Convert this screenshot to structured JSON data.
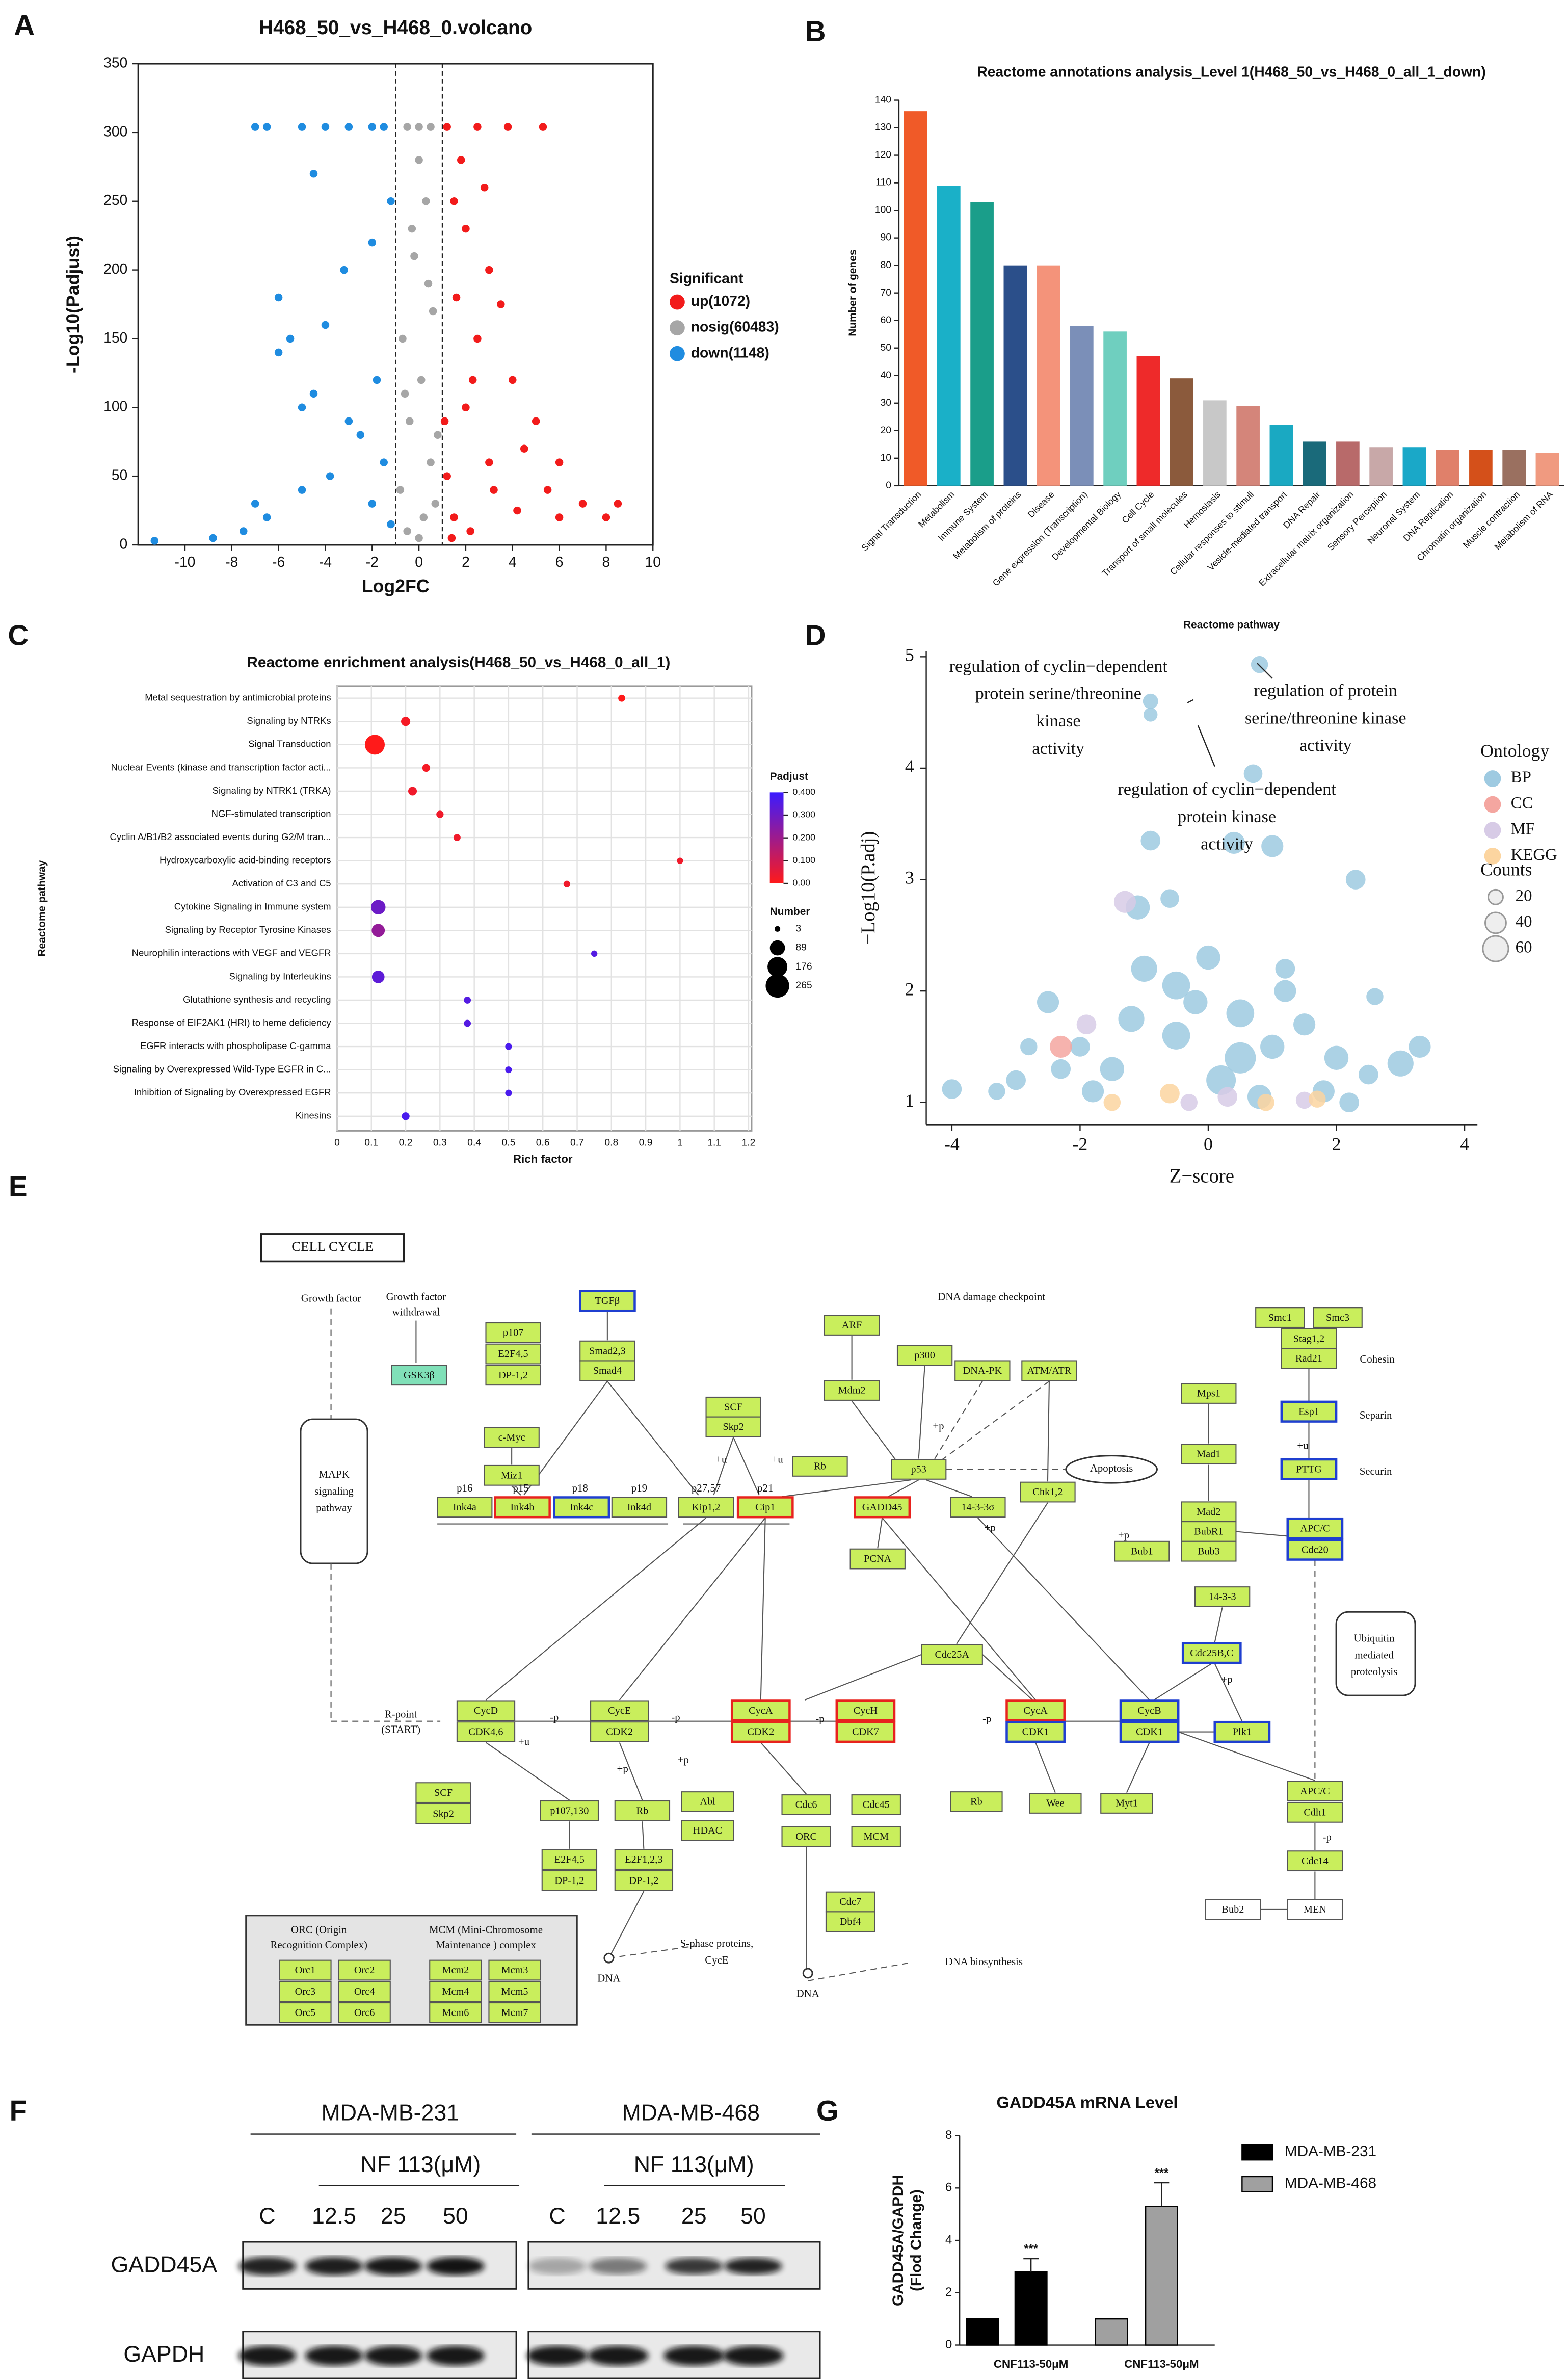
{
  "panel_labels": [
    "A",
    "B",
    "C",
    "D",
    "E",
    "F",
    "G"
  ],
  "chart_data": [
    {
      "type": "scatter",
      "title": "H468_50_vs_H468_0.volcano",
      "x_label": "Log2FC",
      "y_label": "-Log10(Padjust)",
      "xlim": [
        -12,
        10
      ],
      "xticks": [
        -10,
        -8,
        -6,
        -4,
        -2,
        0,
        2,
        4,
        6,
        8,
        10
      ],
      "ylim": [
        0,
        350
      ],
      "yticks": [
        0,
        50,
        100,
        150,
        200,
        250,
        300,
        350
      ],
      "thresholds": [
        -1,
        1
      ],
      "legend_title": "Significant",
      "legend": "right",
      "series": [
        {
          "name": "up(1072)",
          "color": "#f21b1b",
          "x": [
            1.5,
            2,
            3,
            2.5,
            4,
            5,
            6,
            7,
            8.5,
            8,
            6,
            5.5,
            3,
            2,
            1.2,
            1.5,
            2.2,
            4.5,
            3.5,
            1.8,
            2.8,
            5.3,
            3.8,
            1.2,
            2.5,
            1.6,
            2.3,
            1.1,
            3.2,
            4.2,
            1.4
          ],
          "y": [
            250,
            230,
            200,
            150,
            120,
            90,
            60,
            30,
            30,
            20,
            20,
            40,
            60,
            100,
            50,
            20,
            10,
            70,
            175,
            280,
            260,
            304,
            304,
            304,
            304,
            180,
            120,
            90,
            40,
            25,
            5
          ]
        },
        {
          "name": "nosig(60483)",
          "color": "#a6a6a6",
          "x": [
            0,
            -0.5,
            0.5,
            0,
            0.3,
            -0.2,
            0.6,
            -0.7,
            0.1,
            -0.4,
            0.5,
            -0.8,
            0.2,
            0,
            -0.5,
            0.8,
            -0.3,
            0.4,
            -0.6,
            0.7
          ],
          "y": [
            304,
            304,
            304,
            280,
            250,
            210,
            170,
            150,
            120,
            90,
            60,
            40,
            20,
            5,
            10,
            80,
            230,
            190,
            110,
            30
          ]
        },
        {
          "name": "down(1148)",
          "color": "#1f8ce0",
          "x": [
            -1.5,
            -3,
            -5,
            -7,
            -2,
            -4,
            -6.5,
            -1.2,
            -2,
            -3.2,
            -4,
            -5.5,
            -6,
            -4.5,
            -3,
            -2.5,
            -1.5,
            -6.5,
            -7,
            -7.5,
            -11.3,
            -5,
            -2,
            -1.2,
            -3.8,
            -4.5,
            -8.8,
            -6,
            -5,
            -1.8
          ],
          "y": [
            304,
            304,
            304,
            304,
            304,
            304,
            304,
            250,
            220,
            200,
            160,
            150,
            140,
            110,
            90,
            80,
            60,
            20,
            30,
            10,
            3,
            40,
            30,
            15,
            50,
            270,
            5,
            180,
            100,
            120
          ]
        }
      ]
    },
    {
      "type": "bar",
      "title": "Reactome annotations analysis_Level 1(H468_50_vs_H468_0_all_1_down)",
      "x_label": "Reactome pathway",
      "y_label": "Number of genes",
      "ylim": [
        0,
        140
      ],
      "yticks": [
        0,
        10,
        20,
        30,
        40,
        50,
        60,
        70,
        80,
        90,
        100,
        110,
        120,
        130,
        140
      ],
      "categories": [
        "Signal Transduction",
        "Metabolism",
        "Immune System",
        "Metabolism of proteins",
        "Disease",
        "Gene expression (Transcription)",
        "Developmental Biology",
        "Cell Cycle",
        "Transport of small molecules",
        "Hemostasis",
        "Cellular responses to stimuli",
        "Vesicle-mediated transport",
        "DNA Repair",
        "Extracellular matrix organization",
        "Sensory Perception",
        "Neuronal System",
        "DNA Replication",
        "Chromatin organization",
        "Muscle contraction",
        "Metabolism of RNA"
      ],
      "values": [
        136,
        109,
        103,
        80,
        80,
        58,
        56,
        47,
        39,
        31,
        29,
        22,
        16,
        16,
        14,
        14,
        13,
        13,
        13,
        12
      ],
      "colors": [
        "#f05a28",
        "#1ab0c8",
        "#1a9e8a",
        "#2b4f8a",
        "#f4937a",
        "#7b8fb8",
        "#6fcfbf",
        "#ee2a2a",
        "#8b5a3c",
        "#c8c8c8",
        "#d4857a",
        "#1aa9c2",
        "#1a6a7a",
        "#b86a6a",
        "#c8a8a8",
        "#1aa8c8",
        "#e0806a",
        "#d4501a",
        "#9a7060",
        "#f09a80"
      ]
    },
    {
      "type": "dot",
      "title": "Reactome enrichment analysis(H468_50_vs_H468_0_all_1)",
      "x_label": "Rich factor",
      "y_label": "Reactome pathway",
      "xlim": [
        0,
        1.2
      ],
      "xticks": [
        0,
        0.1,
        0.2,
        0.3,
        0.4,
        0.5,
        0.6,
        0.7,
        0.8,
        0.9,
        1,
        1.1,
        1.2
      ],
      "grid": true,
      "categories": [
        "Metal sequestration by antimicrobial proteins",
        "Signaling by NTRKs",
        "Signal Transduction",
        "Nuclear Events (kinase and transcription factor acti...",
        "Signaling by NTRK1 (TRKA)",
        "NGF-stimulated transcription",
        "Cyclin A/B1/B2 associated events during G2/M tran...",
        "Hydroxycarboxylic acid-binding receptors",
        "Activation of C3 and C5",
        "Cytokine Signaling in Immune system",
        "Signaling by Receptor Tyrosine Kinases",
        "Neurophilin interactions with VEGF and VEGFR",
        "Signaling by Interleukins",
        "Glutathione synthesis and recycling",
        "Response of EIF2AK1 (HRI) to heme deficiency",
        "EGFR interacts with phospholipase C-gamma",
        "Signaling by Overexpressed Wild-Type EGFR in C...",
        "Inhibition of Signaling by Overexpressed EGFR",
        "Kinesins"
      ],
      "values": [
        0.83,
        0.2,
        0.11,
        0.26,
        0.22,
        0.3,
        0.35,
        1,
        0.67,
        0.12,
        0.12,
        0.75,
        0.12,
        0.38,
        0.38,
        0.5,
        0.5,
        0.5,
        0.2
      ],
      "padjust": [
        0,
        0.02,
        0,
        0.02,
        0.03,
        0.03,
        0.03,
        0.03,
        0.03,
        0.3,
        0.22,
        0.35,
        0.33,
        0.35,
        0.35,
        0.37,
        0.37,
        0.37,
        0.37
      ],
      "number": [
        5,
        15,
        136,
        8,
        12,
        6,
        5,
        3,
        4,
        60,
        45,
        3,
        40,
        5,
        5,
        4,
        4,
        4,
        8
      ],
      "color_title": "Padjust",
      "colorbar_lim": [
        0,
        0.4
      ],
      "colorscale": [
        "#ff1a1a",
        "#3b1bff"
      ],
      "colorbar_ticks": [
        {
          "value": 0.4,
          "label": "0.400"
        },
        {
          "value": 0.3,
          "label": "0.300"
        },
        {
          "value": 0.2,
          "label": "0.200"
        },
        {
          "value": 0.1,
          "label": "0.100"
        },
        {
          "value": 0,
          "label": "0.00"
        }
      ],
      "size_title": "Number",
      "size_legend": [
        3,
        89,
        176,
        265
      ]
    },
    {
      "type": "bubble",
      "x_label": "Z−score",
      "y_label": "−Log10(P.adj)",
      "xlim": [
        -4.4,
        4.2
      ],
      "xticks": [
        -4,
        -2,
        0,
        2,
        4
      ],
      "ylim": [
        0.8,
        5.05
      ],
      "yticks": [
        1,
        2,
        3,
        4,
        5
      ],
      "legend_title": "Ontology",
      "size_title": "Counts",
      "size_legend": [
        20,
        40,
        60
      ],
      "annotations": [
        [
          "regulation of cyclin−dependent",
          "protein serine/threonine",
          "kinase",
          "activity"
        ],
        [
          "regulation of protein",
          "serine/threonine kinase",
          "activity"
        ],
        [
          "regulation of cyclin−dependent",
          "protein kinase",
          "activity"
        ]
      ],
      "series": [
        {
          "name": "BP",
          "color": "#9ecae1",
          "x": [
            0.8,
            -0.9,
            -0.9,
            0.7,
            -0.9,
            0.4,
            1,
            2.3,
            -0.6,
            -1.1,
            -2.5,
            -2,
            -1,
            0,
            0.5,
            1,
            1.5,
            2,
            3,
            3.3,
            -3,
            -4,
            -1.5,
            -0.5,
            0.2,
            0.8,
            1.8,
            2.5,
            -2.8,
            -1.8,
            -0.2,
            1.2,
            2.6,
            -1.2,
            0.5,
            -3.3,
            2.2,
            1.2,
            -0.5,
            -2.3
          ],
          "y": [
            4.93,
            4.6,
            4.48,
            3.95,
            3.35,
            3.33,
            3.3,
            3,
            2.83,
            2.75,
            1.9,
            1.5,
            2.2,
            2.3,
            1.8,
            1.5,
            1.7,
            1.4,
            1.35,
            1.5,
            1.2,
            1.12,
            1.3,
            1.6,
            1.2,
            1.05,
            1.1,
            1.25,
            1.5,
            1.1,
            1.9,
            2,
            1.95,
            1.75,
            1.4,
            1.1,
            1,
            2.2,
            2.05,
            1.3
          ],
          "size": [
            15,
            12,
            10,
            18,
            20,
            25,
            25,
            20,
            18,
            30,
            25,
            20,
            35,
            30,
            40,
            30,
            25,
            30,
            35,
            25,
            20,
            20,
            30,
            40,
            45,
            30,
            25,
            20,
            15,
            25,
            30,
            25,
            15,
            35,
            50,
            15,
            20,
            20,
            40,
            20
          ]
        },
        {
          "name": "CC",
          "color": "#f4a6a0",
          "x": [
            -2.3
          ],
          "y": [
            1.5
          ],
          "size": [
            25
          ]
        },
        {
          "name": "MF",
          "color": "#d7cbe6",
          "x": [
            -1.3,
            -1.9,
            0.3,
            -0.3,
            1.5
          ],
          "y": [
            2.8,
            1.7,
            1.05,
            1,
            1.02
          ],
          "size": [
            25,
            20,
            20,
            15,
            15
          ]
        },
        {
          "name": "KEGG",
          "color": "#fcd5a0",
          "x": [
            -1.5,
            -0.6,
            1.7,
            0.9
          ],
          "y": [
            1,
            1.08,
            1.03,
            1
          ],
          "size": [
            15,
            20,
            15,
            15
          ]
        }
      ]
    },
    {
      "type": "bar",
      "title": "GADD45A mRNA Level",
      "y_label": [
        "GADD45A/GAPDH",
        "(Flod Change)"
      ],
      "ylim": [
        0,
        8
      ],
      "yticks": [
        0,
        2,
        4,
        6,
        8
      ],
      "categories": [
        null,
        "CNF113-50μM",
        null,
        "CNF113-50μM"
      ],
      "series": [
        {
          "name": "MDA-MB-231",
          "color": "#000000",
          "values": [
            1,
            2.8,
            null,
            null
          ],
          "errors": [
            null,
            0.5,
            null,
            null
          ]
        },
        {
          "name": "MDA-MB-468",
          "color": "#a0a0a0",
          "values": [
            null,
            null,
            1,
            5.3
          ],
          "errors": [
            null,
            null,
            null,
            0.9
          ]
        }
      ],
      "significance": [
        null,
        "***",
        null,
        "***"
      ]
    }
  ],
  "pathway": {
    "title": "CELL CYCLE",
    "nodes": [
      {
        "label": "GSK3β",
        "fill": "#80e0b8"
      },
      {
        "label": "TGFβ",
        "border": "blue"
      },
      {
        "label": "p107"
      },
      {
        "label": "E2F4,5"
      },
      {
        "label": "DP-1,2"
      },
      {
        "label": "Smad2,3"
      },
      {
        "label": "Smad4"
      },
      {
        "label": "c-Myc"
      },
      {
        "label": "Miz1"
      },
      {
        "label": "SCF"
      },
      {
        "label": "Skp2"
      },
      {
        "label": "ARF"
      },
      {
        "label": "Mdm2"
      },
      {
        "label": "Rb"
      },
      {
        "label": "p300"
      },
      {
        "label": "DNA-PK"
      },
      {
        "label": "ATM/ATR"
      },
      {
        "label": "p53"
      },
      {
        "label": "Ink4a"
      },
      {
        "label": "Ink4b",
        "border": "red"
      },
      {
        "label": "Ink4c",
        "border": "blue"
      },
      {
        "label": "Ink4d"
      },
      {
        "label": "Kip1,2"
      },
      {
        "label": "Cip1",
        "border": "red"
      },
      {
        "label": "GADD45",
        "border": "red"
      },
      {
        "label": "14-3-3σ"
      },
      {
        "label": "Chk1,2"
      },
      {
        "label": "PCNA"
      },
      {
        "label": "Smc1"
      },
      {
        "label": "Smc3"
      },
      {
        "label": "Stag1,2"
      },
      {
        "label": "Rad21"
      },
      {
        "label": "Esp1",
        "border": "blue"
      },
      {
        "label": "PTTG",
        "border": "blue"
      },
      {
        "label": "Mps1"
      },
      {
        "label": "Mad1"
      },
      {
        "label": "Mad2"
      },
      {
        "label": "BubR1"
      },
      {
        "label": "Bub3"
      },
      {
        "label": "Bub1"
      },
      {
        "label": "APC/C",
        "border": "blue"
      },
      {
        "label": "Cdc20",
        "border": "blue"
      },
      {
        "label": "14-3-3"
      },
      {
        "label": "Cdc25B,C",
        "border": "blue"
      },
      {
        "label": "Cdc25A"
      },
      {
        "label": "CycD"
      },
      {
        "label": "CDK4,6"
      },
      {
        "label": "CycE"
      },
      {
        "label": "CDK2"
      },
      {
        "label": "CycA",
        "border": "red"
      },
      {
        "label": "CDK2",
        "border": "red"
      },
      {
        "label": "CycH",
        "border": "red"
      },
      {
        "label": "CDK7",
        "border": "red"
      },
      {
        "label": "CycA",
        "border": "red"
      },
      {
        "label": "CDK1",
        "border": "blue"
      },
      {
        "label": "CycB",
        "border": "blue"
      },
      {
        "label": "CDK1",
        "border": "blue"
      },
      {
        "label": "Plk1",
        "border": "blue"
      },
      {
        "label": "SCF"
      },
      {
        "label": "Skp2"
      },
      {
        "label": "p107,130"
      },
      {
        "label": "Rb"
      },
      {
        "label": "Abl"
      },
      {
        "label": "HDAC"
      },
      {
        "label": "E2F4,5"
      },
      {
        "label": "DP-1,2"
      },
      {
        "label": "E2F1,2,3"
      },
      {
        "label": "DP-1,2"
      },
      {
        "label": "Cdc6"
      },
      {
        "label": "ORC"
      },
      {
        "label": "Cdc45"
      },
      {
        "label": "MCM"
      },
      {
        "label": "Cdc7"
      },
      {
        "label": "Dbf4"
      },
      {
        "label": "Rb"
      },
      {
        "label": "Wee"
      },
      {
        "label": "Myt1"
      },
      {
        "label": "APC/C"
      },
      {
        "label": "Cdh1"
      },
      {
        "label": "Cdc14"
      },
      {
        "label": "Bub2",
        "fill": "#ffffff"
      },
      {
        "label": "MEN",
        "fill": "#ffffff"
      },
      {
        "label": "Orc1"
      },
      {
        "label": "Orc2"
      },
      {
        "label": "Orc3"
      },
      {
        "label": "Orc4"
      },
      {
        "label": "Orc5"
      },
      {
        "label": "Orc6"
      },
      {
        "label": "Mcm2"
      },
      {
        "label": "Mcm3"
      },
      {
        "label": "Mcm4"
      },
      {
        "label": "Mcm5"
      },
      {
        "label": "Mcm6"
      },
      {
        "label": "Mcm7"
      }
    ],
    "texts": [
      "Growth factor",
      "Growth factor",
      "withdrawal",
      "MAPK",
      "signaling",
      "pathway",
      "DNA damage checkpoint",
      "Apoptosis",
      "p16",
      "p15",
      "p18",
      "p19",
      "p27,57",
      "p21",
      "Cohesin",
      "Separin",
      "Securin",
      "Ubiquitin",
      "mediated",
      "proteolysis",
      "R-point",
      "(START)",
      "DNA",
      "S-phase proteins,",
      "CycE",
      "DNA",
      "DNA biosynthesis",
      "ORC (Origin",
      "Recognition Complex)",
      "MCM (Mini-Chromosome",
      "Maintenance ) complex",
      "+p",
      "+p",
      "+p",
      "+p",
      "+p",
      "+p",
      "-p",
      "-p",
      "-p",
      "-p",
      "-p",
      "+u",
      "+u",
      "+u",
      "+u"
    ]
  },
  "blot": {
    "cell_lines": [
      "MDA-MB-231",
      "MDA-MB-468"
    ],
    "treatment": "NF 113(μM)",
    "lanes": [
      "C",
      "12.5",
      "25",
      "50"
    ],
    "proteins": [
      "GADD45A",
      "GAPDH"
    ]
  }
}
